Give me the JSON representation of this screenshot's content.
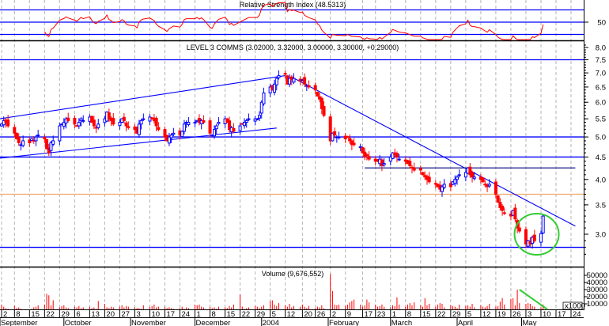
{
  "chart_data": {
    "type": "candlestick",
    "title": "LEVEL 3 COMMS (3.02000, 3.32000, 3.00000, 3.30000, +0.29000)",
    "x_start": "2003-09-02",
    "x_frequency": "weekdays",
    "y_scale": "log",
    "ylim": [
      2.6,
      8.2
    ],
    "y_ticks": [
      "8.0",
      "7.5",
      "7.0",
      "6.5",
      "6.0",
      "5.5",
      "5.0",
      "4.5",
      "4.0",
      "3.5",
      "3.0"
    ],
    "grid": "vertical dashed weekly",
    "up_color": "#0000ff",
    "down_color": "#ff0000",
    "closes": [
      5.35,
      5.45,
      5.4,
      5.3,
      5.1,
      4.95,
      4.85,
      4.8,
      4.9,
      4.85,
      4.95,
      4.9,
      5.0,
      5.05,
      4.95,
      4.7,
      4.6,
      4.85,
      4.9,
      5.3,
      5.35,
      5.4,
      5.5,
      5.45,
      5.35,
      5.3,
      5.4,
      5.5,
      5.45,
      5.55,
      5.4,
      5.3,
      5.25,
      5.35,
      5.5,
      5.7,
      5.5,
      5.45,
      5.35,
      5.4,
      5.5,
      5.45,
      5.3,
      5.25,
      5.2,
      5.1,
      5.35,
      5.45,
      5.5,
      5.55,
      5.5,
      5.45,
      5.3,
      5.2,
      5.0,
      4.9,
      5.0,
      5.05,
      5.1,
      5.05,
      5.15,
      5.35,
      5.4,
      5.4,
      5.4,
      5.45,
      5.4,
      5.45,
      5.4,
      5.1,
      5.05,
      5.2,
      5.3,
      5.4,
      5.5,
      5.4,
      5.2,
      5.25,
      5.15,
      5.3,
      5.35,
      5.4,
      5.45,
      5.5,
      5.5,
      5.5,
      5.6,
      6.0,
      6.3,
      6.5,
      6.4,
      6.6,
      6.8,
      6.9,
      6.95,
      6.6,
      6.8,
      6.75,
      6.8,
      6.7,
      6.75,
      6.6,
      6.55,
      6.5,
      6.4,
      6.2,
      6.1,
      5.8,
      5.6,
      4.9,
      5.1,
      5.05,
      5.0,
      5.0,
      4.95,
      5.0,
      4.9,
      4.8,
      4.8,
      4.75,
      4.6,
      4.5,
      4.55,
      4.45,
      4.4,
      4.4,
      4.45,
      4.3,
      4.35,
      4.5,
      4.6,
      4.55,
      4.5,
      4.45,
      4.4,
      4.35,
      4.3,
      4.25,
      4.2,
      4.2,
      4.1,
      4.05,
      4.0,
      3.95,
      3.9,
      3.85,
      3.8,
      3.85,
      3.9,
      3.85,
      3.95,
      4.0,
      4.05,
      4.1,
      4.15,
      4.25,
      4.1,
      4.05,
      4.05,
      4.0,
      3.95,
      3.9,
      3.85,
      3.9,
      3.7,
      3.55,
      3.45,
      3.4,
      3.35,
      3.3,
      3.4,
      3.25,
      3.1,
      3.05,
      2.85,
      2.9,
      2.85,
      2.95,
      2.9,
      3.01,
      3.3
    ],
    "last_bar": {
      "open": 3.02,
      "high": 3.32,
      "low": 3.0,
      "close": 3.3,
      "change": 0.29
    },
    "horizontal_lines": [
      {
        "price": 7.5,
        "color": "#0000ff"
      },
      {
        "price": 5.0,
        "color": "#0000ff"
      },
      {
        "price": 4.5,
        "color": "#0000ff"
      },
      {
        "price": 3.7,
        "color": "#f0a868"
      },
      {
        "price": 2.8,
        "color": "#0000ff"
      }
    ],
    "trendlines": [
      {
        "from": [
          "2003-09-01",
          5.5
        ],
        "to": [
          "2004-01-12",
          6.9
        ],
        "color": "#0000ff"
      },
      {
        "from": [
          "2003-09-01",
          4.47
        ],
        "to": [
          "2004-01-08",
          5.24
        ],
        "color": "#0000ff"
      },
      {
        "from": [
          "2004-01-15",
          6.85
        ],
        "to": [
          "2004-05-26",
          3.13
        ],
        "color": "#0000ff"
      },
      {
        "from": [
          "2004-02-18",
          4.25
        ],
        "to": [
          "2004-05-26",
          4.25
        ],
        "color": "#000080"
      }
    ],
    "annotation_circle": {
      "center": [
        "2004-05-08",
        3.0
      ],
      "color": "#33cc33"
    },
    "rsi": {
      "label": "Relative Strength Index (48.5313)",
      "period": 14,
      "levels": [
        70,
        50,
        30
      ],
      "tick_labels": [
        "50"
      ],
      "color": "#ff0000"
    },
    "volume": {
      "label": "Volume (9,676,552)",
      "unit_label": "x1000",
      "tick_labels": [
        "50000",
        "40000",
        "30000",
        "20000",
        "10000"
      ],
      "color": "#ff0000",
      "values": [
        9000,
        6000,
        4000,
        3000,
        7000,
        4000,
        5000,
        3000,
        2000,
        2000,
        3000,
        5000,
        6000,
        8000,
        9000,
        24000,
        22000,
        8000,
        15000,
        5000,
        7000,
        8000,
        5000,
        4000,
        6000,
        5000,
        7000,
        4000,
        5000,
        6000,
        4000,
        5000,
        3000,
        14000,
        10000,
        5000,
        4000,
        6000,
        5000,
        6000,
        8000,
        5000,
        7000,
        6000,
        5000,
        4000,
        4000,
        3000,
        8000,
        6000,
        7000,
        9000,
        5000,
        6000,
        6000,
        4000,
        5000,
        4000,
        3000,
        4000,
        6000,
        3000,
        5000,
        4000,
        9000,
        8000,
        9000,
        6000,
        5000,
        6000,
        4000,
        5000,
        3000,
        6000,
        5000,
        4000,
        7000,
        5000,
        9000,
        23000,
        6000,
        3000,
        4000,
        5000,
        7000,
        6000,
        4000,
        6000,
        8000,
        14000,
        15000,
        9000,
        7000,
        11000,
        8000,
        6000,
        10000,
        5000,
        7000,
        6000,
        9000,
        6000,
        4000,
        7000,
        4000,
        6000,
        5000,
        8000,
        4000,
        52000,
        28000,
        9000,
        8000,
        9000,
        7000,
        9000,
        12000,
        14000,
        16000,
        9000,
        6000,
        8000,
        16000,
        12000,
        9000,
        6000,
        7000,
        9000,
        6000,
        5000,
        8000,
        7000,
        19000,
        9000,
        6000,
        9000,
        11000,
        8000,
        12000,
        8000,
        6000,
        18000,
        8000,
        10000,
        6000,
        9000,
        11000,
        10000,
        5000,
        8000,
        7000,
        6000,
        4000,
        9000,
        7000,
        8000,
        6000,
        10000,
        5000,
        8000,
        6000,
        5000,
        7000,
        10000,
        6000,
        7000,
        13000,
        18000,
        9000,
        17000,
        18000,
        8000,
        30000,
        11000,
        10000,
        11000,
        10000,
        7000,
        6000,
        5000,
        9000
      ],
      "annotation_line": {
        "from": [
          "2004-04-30",
          30000
        ],
        "to": [
          "2004-05-13",
          0
        ],
        "color": "#33cc33"
      }
    },
    "x_ticks": [
      {
        "date": "2003-09-02",
        "label": "2"
      },
      {
        "date": "2003-09-08",
        "label": "8"
      },
      {
        "date": "2003-09-15",
        "label": "15"
      },
      {
        "date": "2003-09-22",
        "label": "22"
      },
      {
        "date": "2003-09-29",
        "label": "29"
      },
      {
        "date": "2003-10-06",
        "label": "6"
      },
      {
        "date": "2003-10-13",
        "label": "13"
      },
      {
        "date": "2003-10-20",
        "label": "20"
      },
      {
        "date": "2003-10-27",
        "label": "27"
      },
      {
        "date": "2003-11-03",
        "label": "3"
      },
      {
        "date": "2003-11-10",
        "label": "10"
      },
      {
        "date": "2003-11-17",
        "label": "17"
      },
      {
        "date": "2003-11-24",
        "label": "24"
      },
      {
        "date": "2003-12-01",
        "label": "1"
      },
      {
        "date": "2003-12-08",
        "label": "8"
      },
      {
        "date": "2003-12-15",
        "label": "15"
      },
      {
        "date": "2003-12-22",
        "label": "22"
      },
      {
        "date": "2003-12-29",
        "label": "29"
      },
      {
        "date": "2004-01-05",
        "label": "5"
      },
      {
        "date": "2004-01-12",
        "label": "12"
      },
      {
        "date": "2004-01-20",
        "label": "20"
      },
      {
        "date": "2004-01-26",
        "label": "26"
      },
      {
        "date": "2004-02-02",
        "label": "2"
      },
      {
        "date": "2004-02-09",
        "label": "9"
      },
      {
        "date": "2004-02-17",
        "label": "17"
      },
      {
        "date": "2004-02-23",
        "label": "23"
      },
      {
        "date": "2004-03-01",
        "label": "1"
      },
      {
        "date": "2004-03-08",
        "label": "8"
      },
      {
        "date": "2004-03-15",
        "label": "15"
      },
      {
        "date": "2004-03-22",
        "label": "22"
      },
      {
        "date": "2004-03-29",
        "label": "29"
      },
      {
        "date": "2004-04-05",
        "label": "5"
      },
      {
        "date": "2004-04-12",
        "label": "12"
      },
      {
        "date": "2004-04-19",
        "label": "19"
      },
      {
        "date": "2004-04-26",
        "label": "26"
      },
      {
        "date": "2004-05-03",
        "label": "3"
      },
      {
        "date": "2004-05-10",
        "label": "10"
      },
      {
        "date": "2004-05-17",
        "label": "17"
      },
      {
        "date": "2004-05-24",
        "label": "24"
      }
    ],
    "month_labels": [
      {
        "date": "2003-09-01",
        "label": "September"
      },
      {
        "date": "2003-10-01",
        "label": "October"
      },
      {
        "date": "2003-11-01",
        "label": "November"
      },
      {
        "date": "2003-12-01",
        "label": "December"
      },
      {
        "date": "2004-01-01",
        "label": "2004"
      },
      {
        "date": "2004-02-01",
        "label": "February"
      },
      {
        "date": "2004-03-01",
        "label": "March"
      },
      {
        "date": "2004-04-01",
        "label": "April"
      },
      {
        "date": "2004-05-01",
        "label": "May"
      }
    ]
  }
}
